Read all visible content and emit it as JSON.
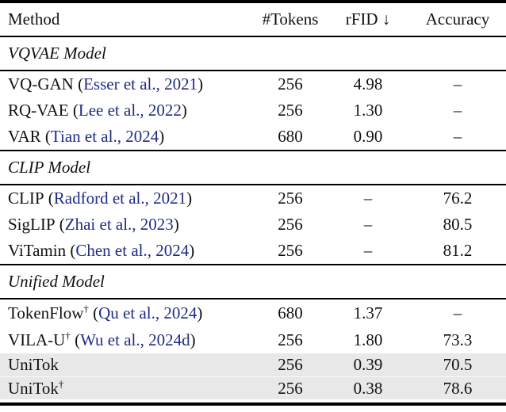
{
  "colors": {
    "citation": "#1f2b87",
    "highlight": "#e8e8e8",
    "text": "#111111",
    "rule": "#000000"
  },
  "table": {
    "header": {
      "method": "Method",
      "tokens": "#Tokens",
      "rfid": "rFID ↓",
      "accuracy": "Accuracy"
    },
    "sections": [
      {
        "label": "VQVAE Model"
      },
      {
        "label": "CLIP Model"
      },
      {
        "label": "Unified Model"
      }
    ],
    "rows": [
      {
        "name": "VQ-GAN",
        "dagger": "",
        "open": " (",
        "cite": "Esser et al., 2021",
        "close": ")",
        "tokens": "256",
        "rfid": "4.98",
        "accuracy": "–"
      },
      {
        "name": "RQ-VAE",
        "dagger": "",
        "open": " (",
        "cite": "Lee et al., 2022",
        "close": ")",
        "tokens": "256",
        "rfid": "1.30",
        "accuracy": "–"
      },
      {
        "name": "VAR",
        "dagger": "",
        "open": " (",
        "cite": "Tian et al., 2024",
        "close": ")",
        "tokens": "680",
        "rfid": "0.90",
        "accuracy": "–"
      },
      {
        "name": "CLIP",
        "dagger": "",
        "open": " (",
        "cite": "Radford et al., 2021",
        "close": ")",
        "tokens": "256",
        "rfid": "–",
        "accuracy": "76.2"
      },
      {
        "name": "SigLIP",
        "dagger": "",
        "open": " (",
        "cite": "Zhai et al., 2023",
        "close": ")",
        "tokens": "256",
        "rfid": "–",
        "accuracy": "80.5"
      },
      {
        "name": "ViTamin",
        "dagger": "",
        "open": " (",
        "cite": "Chen et al., 2024",
        "close": ")",
        "tokens": "256",
        "rfid": "–",
        "accuracy": "81.2"
      },
      {
        "name": "TokenFlow",
        "dagger": "†",
        "open": " (",
        "cite": "Qu et al., 2024",
        "close": ")",
        "tokens": "680",
        "rfid": "1.37",
        "accuracy": "–"
      },
      {
        "name": "VILA-U",
        "dagger": "†",
        "open": " (",
        "cite": "Wu et al., 2024d",
        "close": ")",
        "tokens": "256",
        "rfid": "1.80",
        "accuracy": "73.3"
      },
      {
        "name": "UniTok",
        "dagger": "",
        "open": "",
        "cite": "",
        "close": "",
        "tokens": "256",
        "rfid": "0.39",
        "accuracy": "70.5"
      },
      {
        "name": "UniTok",
        "dagger": "†",
        "open": "",
        "cite": "",
        "close": "",
        "tokens": "256",
        "rfid": "0.38",
        "accuracy": "78.6"
      }
    ]
  }
}
